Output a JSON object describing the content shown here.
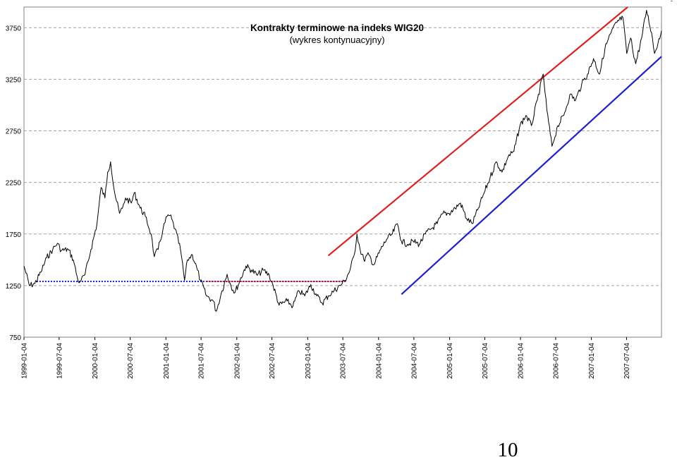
{
  "page_number": "10",
  "corner_mark": "-",
  "chart_data": {
    "type": "line",
    "title": "Kontrakty terminowe na indeks WIG20",
    "subtitle": "(wykres kontynuacyjny)",
    "xlabel": "",
    "ylabel": "",
    "ylim": [
      750,
      3950
    ],
    "xlim": [
      "1999-01-04",
      "2007-12-31"
    ],
    "grid": true,
    "y_ticks": [
      750,
      1250,
      1750,
      2250,
      2750,
      3250,
      3750
    ],
    "x_ticks": [
      "1999-01-04",
      "1999-07-04",
      "2000-01-04",
      "2000-07-04",
      "2001-01-04",
      "2001-07-04",
      "2002-01-04",
      "2002-07-04",
      "2003-01-04",
      "2003-07-04",
      "2004-01-04",
      "2004-07-04",
      "2005-01-04",
      "2005-07-04",
      "2006-01-04",
      "2006-07-04",
      "2007-01-04",
      "2007-07-04"
    ],
    "series": [
      {
        "color": "#000000",
        "points": [
          [
            "1999-01-04",
            1440
          ],
          [
            "1999-02-01",
            1250
          ],
          [
            "1999-03-01",
            1270
          ],
          [
            "1999-04-01",
            1380
          ],
          [
            "1999-05-01",
            1520
          ],
          [
            "1999-06-01",
            1600
          ],
          [
            "1999-06-25",
            1660
          ],
          [
            "1999-07-15",
            1590
          ],
          [
            "1999-08-20",
            1600
          ],
          [
            "1999-09-15",
            1500
          ],
          [
            "1999-10-10",
            1290
          ],
          [
            "1999-10-25",
            1300
          ],
          [
            "1999-11-15",
            1360
          ],
          [
            "1999-12-15",
            1600
          ],
          [
            "2000-01-15",
            1850
          ],
          [
            "2000-02-05",
            2200
          ],
          [
            "2000-02-25",
            2100
          ],
          [
            "2000-03-10",
            2350
          ],
          [
            "2000-03-25",
            2450
          ],
          [
            "2000-04-15",
            2150
          ],
          [
            "2000-05-10",
            1950
          ],
          [
            "2000-05-25",
            2000
          ],
          [
            "2000-06-10",
            2100
          ],
          [
            "2000-07-10",
            2050
          ],
          [
            "2000-07-25",
            2150
          ],
          [
            "2000-08-25",
            2000
          ],
          [
            "2000-09-20",
            1920
          ],
          [
            "2000-10-20",
            1750
          ],
          [
            "2000-11-05",
            1530
          ],
          [
            "2000-11-25",
            1600
          ],
          [
            "2000-12-20",
            1800
          ],
          [
            "2001-01-10",
            1920
          ],
          [
            "2001-01-25",
            1930
          ],
          [
            "2001-02-20",
            1800
          ],
          [
            "2001-03-20",
            1600
          ],
          [
            "2001-04-10",
            1300
          ],
          [
            "2001-04-25",
            1500
          ],
          [
            "2001-05-20",
            1550
          ],
          [
            "2001-06-15",
            1400
          ],
          [
            "2001-07-01",
            1300
          ],
          [
            "2001-08-01",
            1150
          ],
          [
            "2001-09-05",
            1100
          ],
          [
            "2001-09-20",
            1000
          ],
          [
            "2001-10-20",
            1200
          ],
          [
            "2001-11-15",
            1360
          ],
          [
            "2001-12-05",
            1250
          ],
          [
            "2001-12-25",
            1180
          ],
          [
            "2002-01-20",
            1300
          ],
          [
            "2002-02-20",
            1440
          ],
          [
            "2002-03-20",
            1400
          ],
          [
            "2002-04-20",
            1350
          ],
          [
            "2002-05-20",
            1400
          ],
          [
            "2002-06-20",
            1350
          ],
          [
            "2002-07-10",
            1250
          ],
          [
            "2002-08-10",
            1060
          ],
          [
            "2002-09-20",
            1100
          ],
          [
            "2002-10-20",
            1050
          ],
          [
            "2002-11-20",
            1200
          ],
          [
            "2002-12-20",
            1150
          ],
          [
            "2003-01-20",
            1260
          ],
          [
            "2003-02-20",
            1150
          ],
          [
            "2003-03-20",
            1080
          ],
          [
            "2003-04-20",
            1150
          ],
          [
            "2003-05-20",
            1200
          ],
          [
            "2003-06-20",
            1250
          ],
          [
            "2003-07-15",
            1300
          ],
          [
            "2003-08-10",
            1400
          ],
          [
            "2003-09-01",
            1550
          ],
          [
            "2003-09-15",
            1750
          ],
          [
            "2003-10-01",
            1600
          ],
          [
            "2003-10-20",
            1500
          ],
          [
            "2003-11-15",
            1550
          ],
          [
            "2003-12-10",
            1450
          ],
          [
            "2004-01-15",
            1600
          ],
          [
            "2004-02-15",
            1700
          ],
          [
            "2004-03-15",
            1750
          ],
          [
            "2004-04-10",
            1850
          ],
          [
            "2004-05-01",
            1680
          ],
          [
            "2004-06-01",
            1650
          ],
          [
            "2004-07-01",
            1680
          ],
          [
            "2004-08-01",
            1650
          ],
          [
            "2004-09-01",
            1750
          ],
          [
            "2004-10-01",
            1800
          ],
          [
            "2004-11-01",
            1850
          ],
          [
            "2004-12-01",
            1950
          ],
          [
            "2005-01-01",
            1950
          ],
          [
            "2005-02-01",
            2000
          ],
          [
            "2005-03-01",
            2050
          ],
          [
            "2005-04-01",
            1900
          ],
          [
            "2005-05-01",
            1850
          ],
          [
            "2005-06-01",
            2000
          ],
          [
            "2005-07-01",
            2150
          ],
          [
            "2005-08-01",
            2300
          ],
          [
            "2005-09-01",
            2450
          ],
          [
            "2005-10-01",
            2350
          ],
          [
            "2005-11-01",
            2500
          ],
          [
            "2005-12-01",
            2550
          ],
          [
            "2006-01-01",
            2800
          ],
          [
            "2006-02-01",
            2900
          ],
          [
            "2006-03-01",
            2800
          ],
          [
            "2006-04-01",
            3050
          ],
          [
            "2006-05-01",
            3300
          ],
          [
            "2006-05-20",
            2950
          ],
          [
            "2006-06-15",
            2600
          ],
          [
            "2006-07-15",
            2800
          ],
          [
            "2006-08-15",
            2900
          ],
          [
            "2006-09-15",
            3100
          ],
          [
            "2006-10-15",
            3050
          ],
          [
            "2006-11-15",
            3200
          ],
          [
            "2006-12-15",
            3300
          ],
          [
            "2007-01-15",
            3450
          ],
          [
            "2007-02-15",
            3300
          ],
          [
            "2007-03-15",
            3550
          ],
          [
            "2007-04-15",
            3700
          ],
          [
            "2007-05-15",
            3800
          ],
          [
            "2007-06-15",
            3850
          ],
          [
            "2007-07-05",
            3500
          ],
          [
            "2007-07-25",
            3650
          ],
          [
            "2007-08-20",
            3400
          ],
          [
            "2007-09-20",
            3650
          ],
          [
            "2007-10-15",
            3920
          ],
          [
            "2007-11-10",
            3700
          ],
          [
            "2007-11-25",
            3500
          ],
          [
            "2007-12-31",
            3720
          ]
        ]
      }
    ],
    "trend_lines": [
      {
        "style": "solid",
        "color": "#e02020",
        "from": [
          "2003-04-20",
          1540
        ],
        "to": [
          "2007-07-10",
          3950
        ]
      },
      {
        "style": "solid",
        "color": "#1f1fd0",
        "from": [
          "2004-05-01",
          1165
        ],
        "to": [
          "2007-12-31",
          3470
        ]
      },
      {
        "style": "dotted",
        "color": "#1f1fd0",
        "from": [
          "1999-03-10",
          1290
        ],
        "to": [
          "2003-07-20",
          1290
        ]
      },
      {
        "style": "dotted",
        "color": "#e02020",
        "from": [
          "2001-08-01",
          1290
        ],
        "to": [
          "2003-07-20",
          1290
        ]
      }
    ]
  }
}
